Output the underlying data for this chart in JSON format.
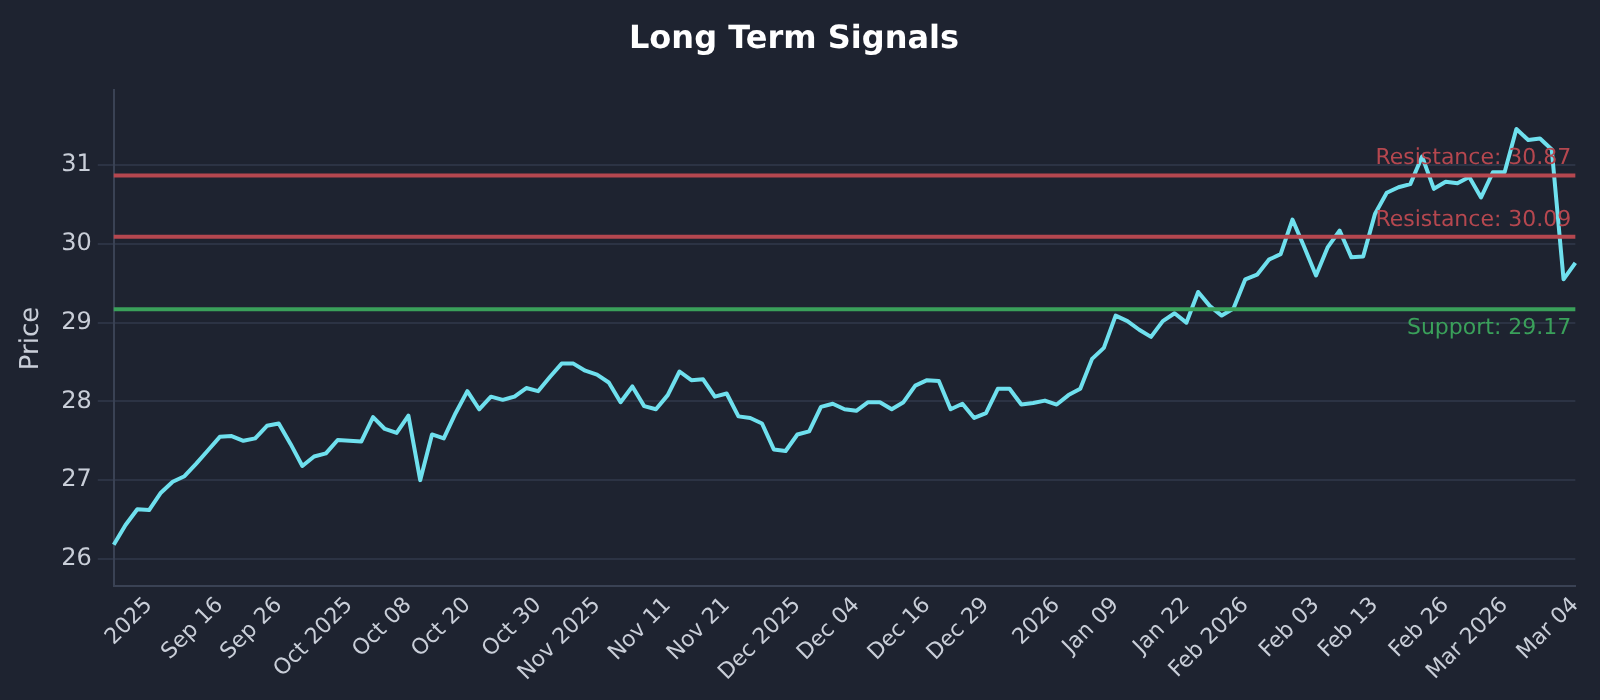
{
  "chart_data": {
    "type": "line",
    "title": "Long Term Signals",
    "ylabel": "Price",
    "categories": [
      null,
      null,
      null,
      "2025",
      null,
      null,
      null,
      null,
      null,
      "Sep 16",
      null,
      null,
      null,
      null,
      "Sep 26",
      null,
      null,
      null,
      null,
      null,
      "Oct 2025",
      null,
      null,
      null,
      null,
      "Oct 08",
      null,
      null,
      null,
      null,
      "Oct 20",
      null,
      null,
      null,
      null,
      null,
      "Oct 30",
      null,
      null,
      null,
      null,
      "Nov 2025",
      null,
      null,
      null,
      null,
      null,
      "Nov 11",
      null,
      null,
      null,
      null,
      "Nov 21",
      null,
      null,
      null,
      null,
      null,
      "Dec 2025",
      null,
      null,
      null,
      null,
      "Dec 04",
      null,
      null,
      null,
      null,
      null,
      "Dec 16",
      null,
      null,
      null,
      null,
      "Dec 29",
      null,
      null,
      null,
      null,
      null,
      "2026",
      null,
      null,
      null,
      null,
      "Jan 09",
      null,
      null,
      null,
      null,
      null,
      "Jan 22",
      null,
      null,
      null,
      null,
      "Feb 2026",
      null,
      null,
      null,
      null,
      null,
      "Feb 03",
      null,
      null,
      null,
      null,
      "Feb 13",
      null,
      null,
      null,
      null,
      null,
      "Feb 26",
      null,
      null,
      null,
      null,
      "Mar 2026",
      null,
      null,
      null,
      null,
      null,
      "Mar 04"
    ],
    "series": [
      {
        "color": "#6fe0ee",
        "values": [
          26.18,
          26.43,
          26.63,
          26.62,
          26.84,
          26.98,
          27.05,
          27.21,
          27.38,
          27.55,
          27.56,
          27.5,
          27.53,
          27.69,
          27.72,
          27.46,
          27.18,
          27.3,
          27.34,
          27.51,
          27.5,
          27.49,
          27.8,
          27.65,
          27.6,
          27.82,
          27.0,
          27.58,
          27.53,
          27.85,
          28.13,
          27.9,
          28.06,
          28.02,
          28.06,
          28.17,
          28.13,
          28.31,
          28.48,
          28.48,
          28.39,
          28.34,
          28.24,
          27.99,
          28.19,
          27.94,
          27.9,
          28.08,
          28.38,
          28.27,
          28.28,
          28.06,
          28.1,
          27.81,
          27.79,
          27.72,
          27.39,
          27.37,
          27.58,
          27.62,
          27.93,
          27.97,
          27.9,
          27.88,
          27.99,
          27.99,
          27.9,
          27.99,
          28.2,
          28.27,
          28.26,
          27.9,
          27.97,
          27.79,
          27.85,
          28.16,
          28.16,
          27.96,
          27.98,
          28.01,
          27.96,
          28.08,
          28.16,
          28.54,
          28.68,
          29.09,
          29.02,
          28.91,
          28.82,
          29.02,
          29.12,
          29.0,
          29.39,
          29.21,
          29.09,
          29.18,
          29.55,
          29.61,
          29.8,
          29.87,
          30.31,
          29.96,
          29.6,
          29.96,
          30.17,
          29.83,
          29.84,
          30.38,
          30.65,
          30.72,
          30.76,
          31.11,
          30.7,
          30.79,
          30.77,
          30.85,
          30.59,
          30.91,
          30.91,
          31.46,
          31.32,
          31.34,
          31.2,
          29.55,
          29.76
        ]
      }
    ],
    "ylim": [
      25.65,
      31.95
    ],
    "yticks": [
      26,
      27,
      28,
      29,
      30,
      31
    ],
    "grid": "y",
    "legend": false,
    "marker": "none",
    "line_style": "solid",
    "ref_lines": [
      {
        "axis": "y",
        "value": 30.87,
        "label": "Resistance: 30.87",
        "color": "#b5474f"
      },
      {
        "axis": "y",
        "value": 30.09,
        "label": "Resistance: 30.09",
        "color": "#b5474f"
      },
      {
        "axis": "y",
        "value": 29.17,
        "label": "Support: 29.17",
        "color": "#3aa05a"
      }
    ]
  }
}
